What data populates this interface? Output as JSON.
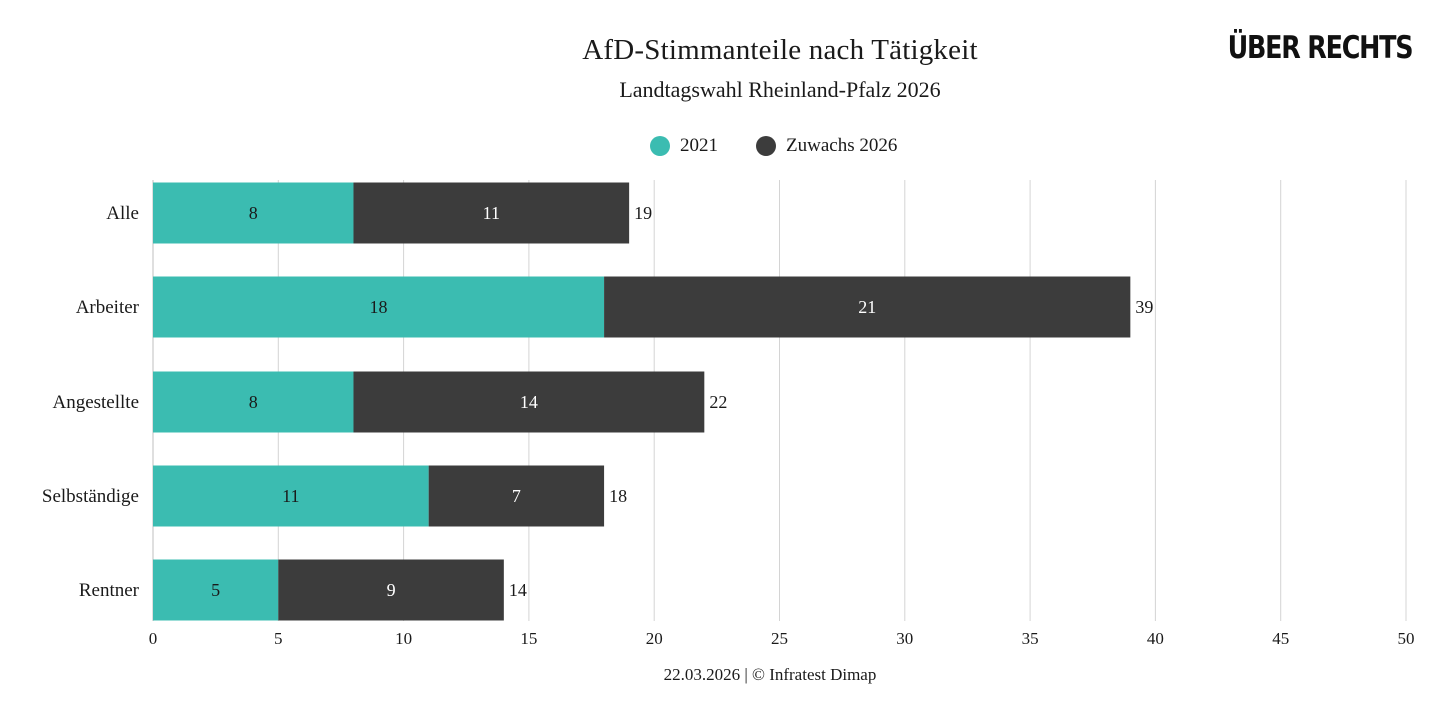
{
  "header": {
    "title": "AfD-Stimmanteile nach Tätigkeit",
    "subtitle": "Landtagswahl Rheinland-Pfalz 2026",
    "logo_text": "ÜBER RECHTS"
  },
  "legend": [
    {
      "label": "2021",
      "color": "#3bbcb1"
    },
    {
      "label": "Zuwachs 2026",
      "color": "#3c3c3c"
    }
  ],
  "footer": {
    "source": "22.03.2026 | © Infratest Dimap"
  },
  "chart_data": {
    "type": "bar",
    "orientation": "horizontal",
    "stacked": true,
    "title": "AfD-Stimmanteile nach Tätigkeit",
    "subtitle": "Landtagswahl Rheinland-Pfalz 2026",
    "categories": [
      "Alle",
      "Arbeiter",
      "Angestellte",
      "Selbständige",
      "Rentner"
    ],
    "series": [
      {
        "name": "2021",
        "color": "#3bbcb1",
        "values": [
          8,
          18,
          8,
          11,
          5
        ]
      },
      {
        "name": "Zuwachs 2026",
        "color": "#3c3c3c",
        "values": [
          11,
          21,
          14,
          7,
          9
        ]
      }
    ],
    "totals": [
      19,
      39,
      22,
      18,
      14
    ],
    "xlim": [
      0,
      50
    ],
    "xticks": [
      0,
      5,
      10,
      15,
      20,
      25,
      30,
      35,
      40,
      45,
      50
    ],
    "grid": true,
    "legend_position": "top-center",
    "xlabel": "",
    "ylabel": ""
  }
}
